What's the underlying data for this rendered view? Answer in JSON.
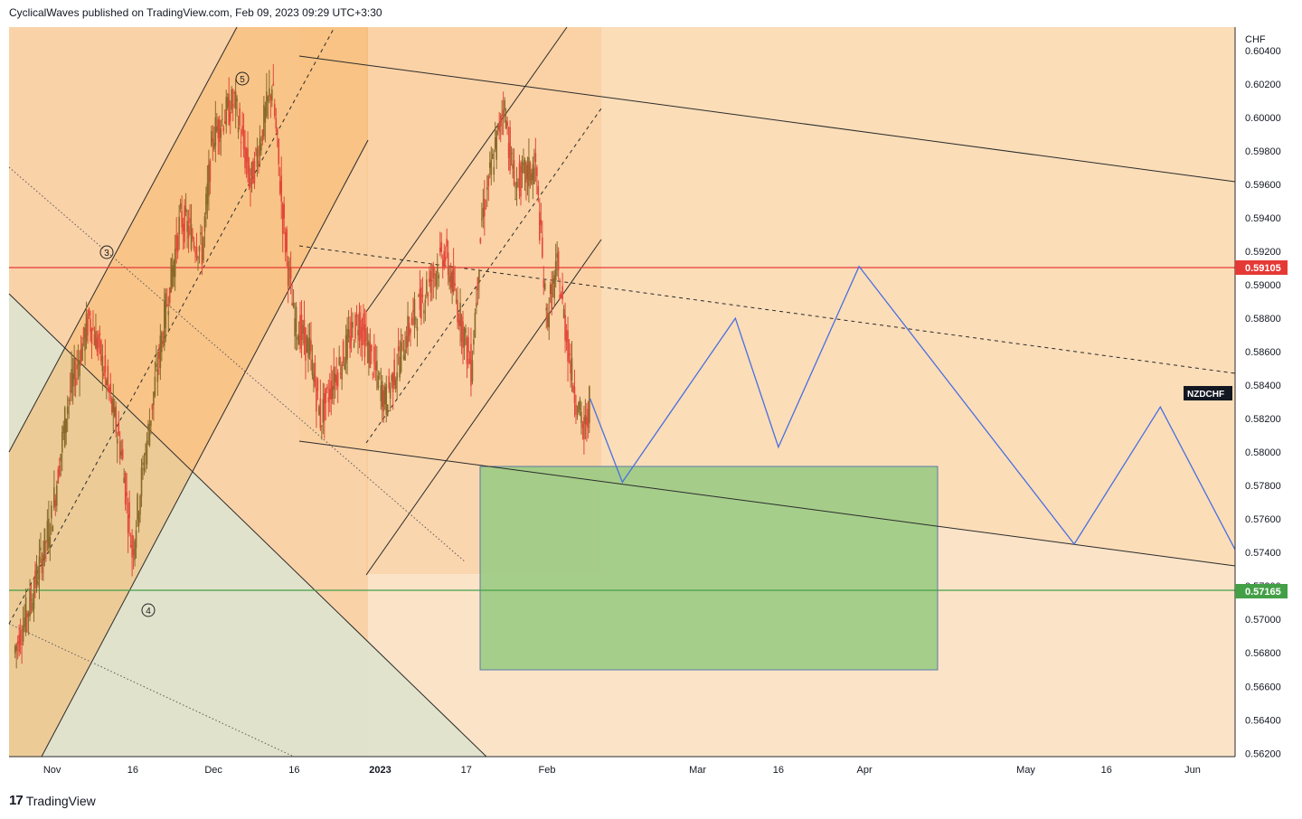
{
  "header": {
    "publisher_line": "CyclicalWaves published on TradingView.com, Feb 09, 2023 09:29 UTC+3:30"
  },
  "footer": {
    "brand": "TradingView",
    "logo_icon": "tradingview-logo-icon"
  },
  "colors": {
    "candle_up": "#8a6a2a",
    "candle_down": "#e2483a",
    "resistance_line": "#e53935",
    "support_line": "#43a047",
    "projection": "#4a6fe0",
    "target_box": "#9ccc84",
    "background_zone": "#fbe3c8",
    "channel_fill": "#f9c58e"
  },
  "chart_data": {
    "type": "candlestick",
    "symbol": "NZDCHF",
    "currency": "CHF",
    "x_tick_labels": [
      "Nov",
      "16",
      "Dec",
      "16",
      "2023",
      "17",
      "Feb",
      "Mar",
      "16",
      "Apr",
      "May",
      "16",
      "Jun"
    ],
    "y_tick_labels": [
      "0.60400",
      "0.60200",
      "0.60000",
      "0.59800",
      "0.59600",
      "0.59400",
      "0.59200",
      "0.59000",
      "0.58800",
      "0.58600",
      "0.58400",
      "0.58200",
      "0.58000",
      "0.57800",
      "0.57600",
      "0.57400",
      "0.57200",
      "0.57000",
      "0.56800",
      "0.56600",
      "0.56400",
      "0.56200"
    ],
    "ylim": [
      0.5618,
      0.6054
    ],
    "price_levels": [
      {
        "label": "0.59105",
        "value": 0.59105,
        "role": "resistance"
      },
      {
        "label": "0.57165",
        "value": 0.57165,
        "role": "support"
      }
    ],
    "symbol_badge": "NZDCHF",
    "wave_labels": [
      "③",
      "④",
      "⑤"
    ],
    "close_series": [
      {
        "date": "2022-10-25",
        "close": 0.568
      },
      {
        "date": "2022-10-28",
        "close": 0.571
      },
      {
        "date": "2022-11-01",
        "close": 0.576
      },
      {
        "date": "2022-11-04",
        "close": 0.583
      },
      {
        "date": "2022-11-08",
        "close": 0.588
      },
      {
        "date": "2022-11-10",
        "close": 0.586
      },
      {
        "date": "2022-11-14",
        "close": 0.58
      },
      {
        "date": "2022-11-16",
        "close": 0.574
      },
      {
        "date": "2022-11-18",
        "close": 0.579
      },
      {
        "date": "2022-11-22",
        "close": 0.588
      },
      {
        "date": "2022-11-25",
        "close": 0.594
      },
      {
        "date": "2022-11-29",
        "close": 0.592
      },
      {
        "date": "2022-12-01",
        "close": 0.599
      },
      {
        "date": "2022-12-05",
        "close": 0.601
      },
      {
        "date": "2022-12-08",
        "close": 0.596
      },
      {
        "date": "2022-12-12",
        "close": 0.602
      },
      {
        "date": "2022-12-14",
        "close": 0.594
      },
      {
        "date": "2022-12-16",
        "close": 0.588
      },
      {
        "date": "2022-12-19",
        "close": 0.586
      },
      {
        "date": "2022-12-21",
        "close": 0.582
      },
      {
        "date": "2022-12-23",
        "close": 0.584
      },
      {
        "date": "2022-12-28",
        "close": 0.588
      },
      {
        "date": "2023-01-02",
        "close": 0.583
      },
      {
        "date": "2023-01-06",
        "close": 0.587
      },
      {
        "date": "2023-01-10",
        "close": 0.59
      },
      {
        "date": "2023-01-13",
        "close": 0.592
      },
      {
        "date": "2023-01-16",
        "close": 0.588
      },
      {
        "date": "2023-01-18",
        "close": 0.585
      },
      {
        "date": "2023-01-20",
        "close": 0.594
      },
      {
        "date": "2023-01-23",
        "close": 0.599
      },
      {
        "date": "2023-01-24",
        "close": 0.601
      },
      {
        "date": "2023-01-26",
        "close": 0.596
      },
      {
        "date": "2023-01-30",
        "close": 0.597
      },
      {
        "date": "2023-02-01",
        "close": 0.588
      },
      {
        "date": "2023-02-03",
        "close": 0.591
      },
      {
        "date": "2023-02-06",
        "close": 0.584
      },
      {
        "date": "2023-02-08",
        "close": 0.581
      },
      {
        "date": "2023-02-09",
        "close": 0.583
      }
    ],
    "projection_path": [
      {
        "date": "2023-02-09",
        "price": 0.5832
      },
      {
        "date": "2023-02-15",
        "price": 0.5782
      },
      {
        "date": "2023-03-08",
        "price": 0.588
      },
      {
        "date": "2023-03-16",
        "price": 0.5803
      },
      {
        "date": "2023-03-31",
        "price": 0.5911
      },
      {
        "date": "2023-05-10",
        "price": 0.5745
      },
      {
        "date": "2023-05-26",
        "price": 0.5827
      },
      {
        "date": "2023-06-10",
        "price": 0.5735
      }
    ],
    "target_zone": {
      "from": "2023-01-19",
      "to": "2023-04-05",
      "price_high": 0.5791,
      "price_low": 0.5669
    },
    "grid": false
  }
}
